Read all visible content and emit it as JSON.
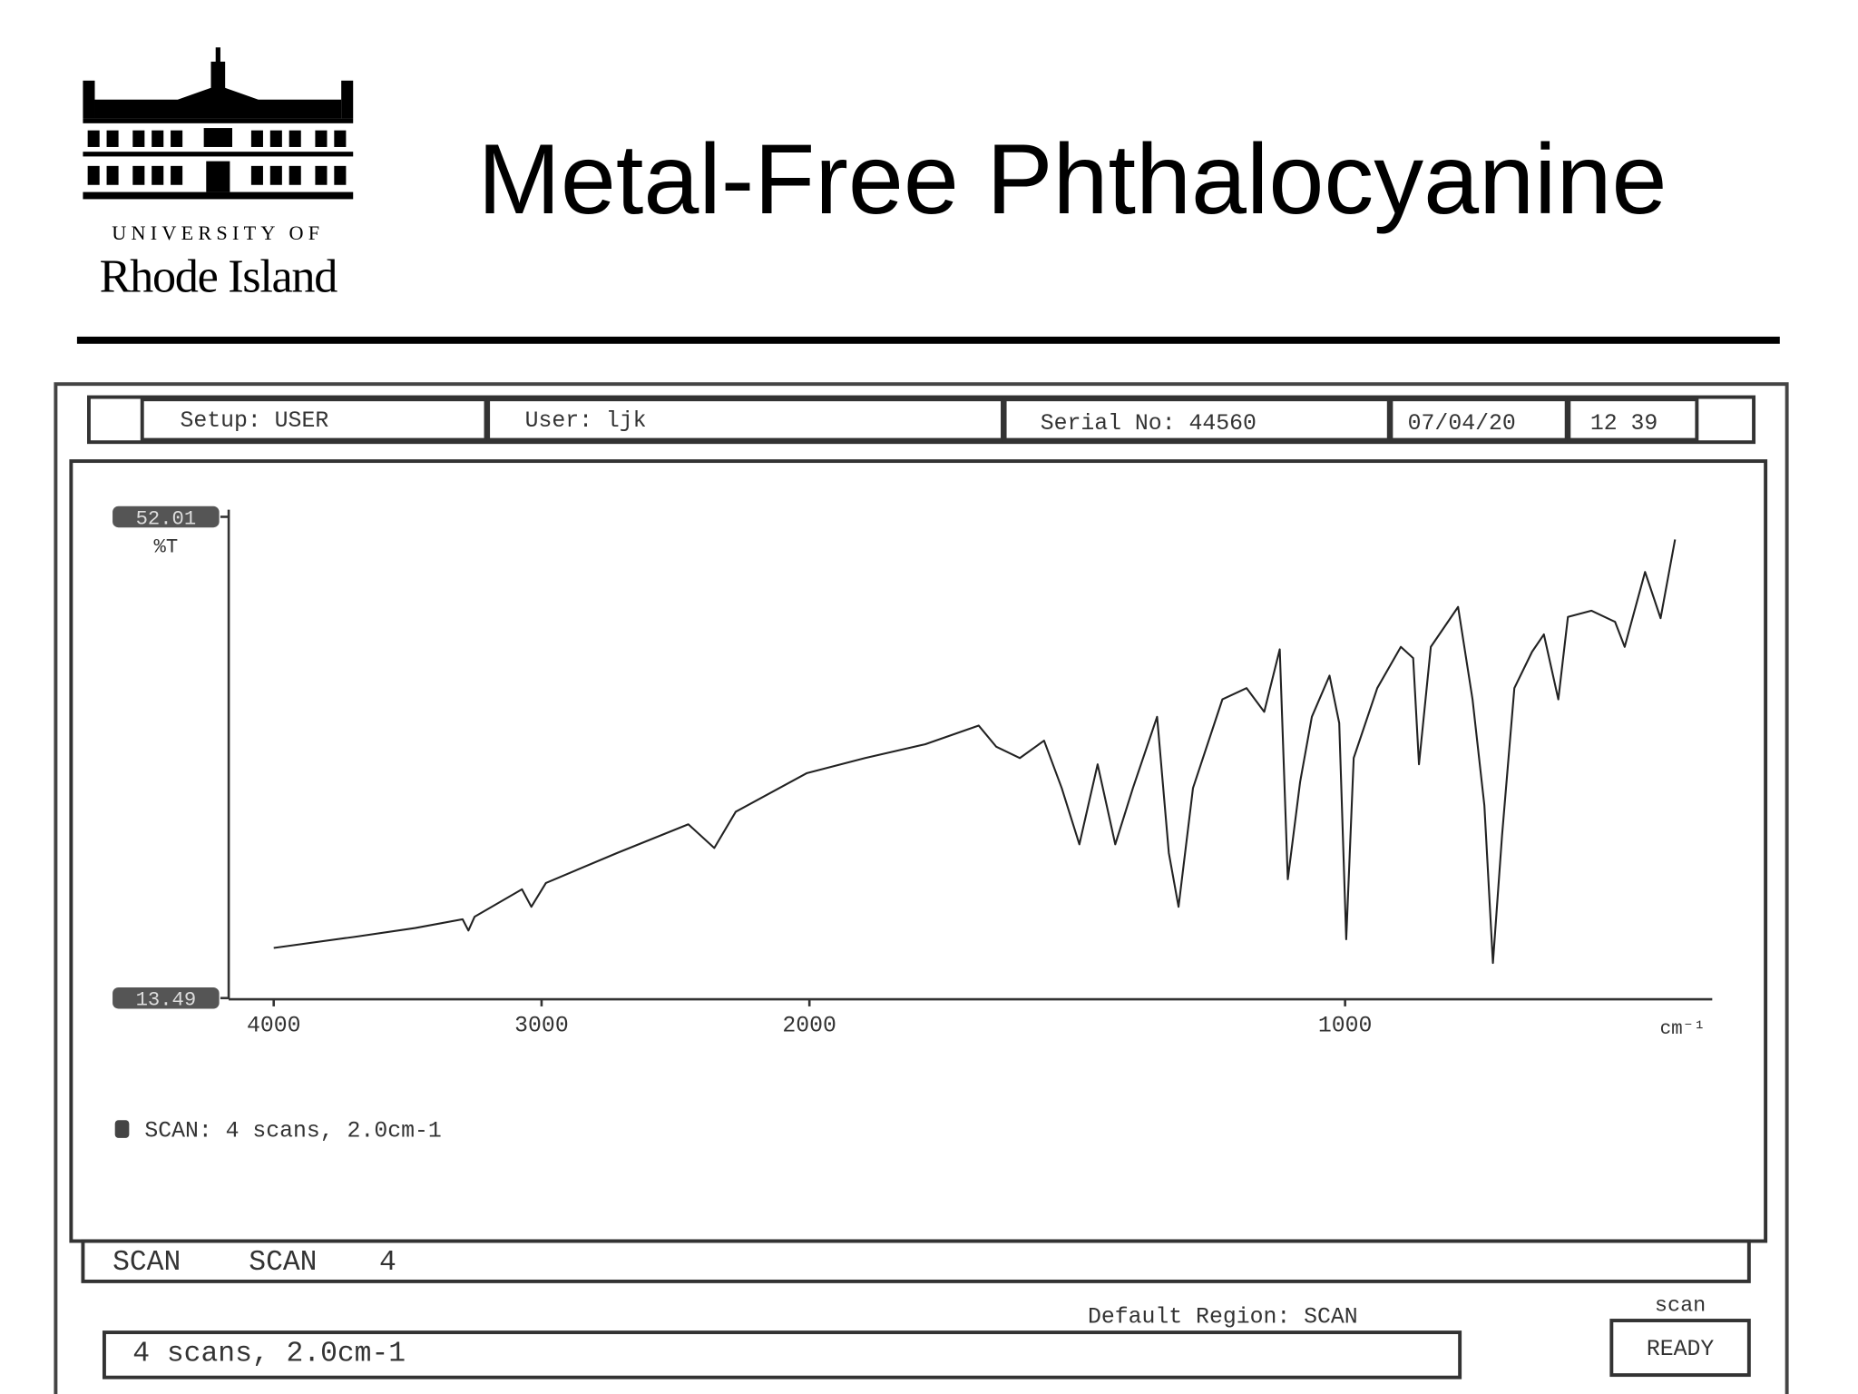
{
  "logo": {
    "line1": "UNIVERSITY OF",
    "line2": "Rhode Island"
  },
  "header": {
    "title": "Metal-Free Phthalocyanine"
  },
  "status_bar": {
    "setup": "Setup: USER",
    "user": "User: ljk",
    "serial": "Serial No: 44560",
    "date": "07/04/20",
    "time": "12 39"
  },
  "chart_data": {
    "type": "line",
    "x": [
      4000,
      3694,
      3472,
      3295,
      3273,
      3250,
      3073,
      3038,
      2984,
      2718,
      2452,
      2355,
      2275,
      2009,
      1896,
      1784,
      1684,
      1651,
      1607,
      1562,
      1529,
      1496,
      1462,
      1429,
      1396,
      1351,
      1329,
      1311,
      1284,
      1229,
      1184,
      1151,
      1122,
      1107,
      1084,
      1062,
      1029,
      1011,
      998,
      984,
      940,
      896,
      873,
      862,
      840,
      789,
      762,
      740,
      724,
      707,
      684,
      651,
      629,
      602,
      584,
      540,
      496,
      478,
      440,
      411,
      384
    ],
    "series": [
      {
        "name": "SCAN: 4 scans, 2.0cm-1",
        "color": "#222222",
        "values": [
          17.5,
          18.4,
          19.1,
          19.8,
          18.9,
          20.0,
          22.2,
          20.8,
          22.7,
          25.1,
          27.4,
          25.5,
          28.4,
          31.5,
          32.7,
          33.8,
          35.3,
          33.6,
          32.7,
          34.1,
          30.3,
          25.8,
          32.2,
          25.8,
          30.3,
          36.0,
          25.1,
          20.8,
          30.3,
          37.4,
          38.3,
          36.4,
          41.4,
          23.0,
          30.8,
          36.0,
          39.3,
          35.5,
          18.2,
          32.7,
          38.3,
          41.6,
          40.7,
          32.2,
          41.6,
          44.8,
          37.4,
          28.9,
          16.3,
          26.5,
          38.3,
          41.2,
          42.6,
          37.4,
          44.0,
          44.5,
          43.6,
          41.6,
          47.6,
          43.9,
          50.2
        ]
      }
    ],
    "xlim": [
      4000,
      350
    ],
    "xticks": [
      4000,
      3000,
      2000,
      1000
    ],
    "ylim": [
      13.49,
      52.01
    ],
    "yticks": [
      13.49,
      52.01
    ],
    "y_label": "%T",
    "x_label": "cm⁻¹"
  },
  "footer": {
    "mode": [
      "SCAN",
      "SCAN",
      "4"
    ],
    "region": "Default Region: SCAN",
    "input": "4 scans, 2.0cm-1",
    "button_caption": "scan",
    "button": "READY"
  }
}
